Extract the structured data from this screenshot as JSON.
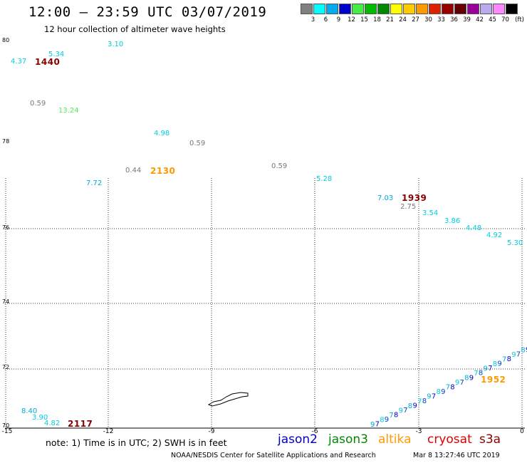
{
  "header": {
    "title": "12:00 – 23:59 UTC 03/07/2019",
    "subtitle": "12 hour collection of altimeter wave heights"
  },
  "colorbar": {
    "swatches": [
      "#808080",
      "#00ffff",
      "#00aaee",
      "#0000cc",
      "#44ee44",
      "#00bb00",
      "#008800",
      "#ffff00",
      "#ffcc00",
      "#ff9900",
      "#dd2200",
      "#990000",
      "#660000",
      "#990099",
      "#bbaaee",
      "#ff88ff",
      "#000000"
    ],
    "labels": [
      "3",
      "6",
      "9",
      "12",
      "15",
      "18",
      "21",
      "24",
      "27",
      "30",
      "33",
      "36",
      "39",
      "42",
      "45",
      "70",
      "(ft)"
    ]
  },
  "axes": {
    "y_labels": [
      "80",
      "78",
      "76",
      "74",
      "72",
      "70"
    ],
    "x_labels": [
      "-15",
      "-12",
      "-9",
      "-6",
      "-3",
      "0"
    ]
  },
  "observations": {
    "small": [
      {
        "t": "4.37",
        "c": "#00ccdd"
      },
      {
        "t": "5.34",
        "c": "#00ccdd"
      },
      {
        "t": "3.10",
        "c": "#00ccdd"
      },
      {
        "t": "0.59",
        "c": "#777777"
      },
      {
        "t": "13.24",
        "c": "#55ee55"
      },
      {
        "t": "4.98",
        "c": "#00ccdd"
      },
      {
        "t": "0.59",
        "c": "#777777"
      },
      {
        "t": "0.44",
        "c": "#777777"
      },
      {
        "t": "0.59",
        "c": "#777777"
      },
      {
        "t": "5.28",
        "c": "#00ccdd"
      },
      {
        "t": "7.72",
        "c": "#00aadd"
      },
      {
        "t": "7.03",
        "c": "#00aadd"
      },
      {
        "t": "2.75",
        "c": "#777777"
      },
      {
        "t": "3.54",
        "c": "#00ccdd"
      },
      {
        "t": "3.86",
        "c": "#00ccdd"
      },
      {
        "t": "4.48",
        "c": "#00ccdd"
      },
      {
        "t": "4.92",
        "c": "#00ccdd"
      },
      {
        "t": "5.30",
        "c": "#00ccdd"
      },
      {
        "t": "8.40",
        "c": "#00aadd"
      },
      {
        "t": "3.90",
        "c": "#00ccdd"
      },
      {
        "t": "4.82",
        "c": "#00ccdd"
      }
    ],
    "times": [
      {
        "t": "1440",
        "c": "#880000"
      },
      {
        "t": "2130",
        "c": "#ff9900"
      },
      {
        "t": "1939",
        "c": "#880000"
      },
      {
        "t": "2117",
        "c": "#880000"
      },
      {
        "t": "1952",
        "c": "#ff9900"
      }
    ]
  },
  "footer": {
    "note": "note: 1) Time is in UTC; 2) SWH is in feet",
    "missions": [
      {
        "name": "jason2",
        "color": "#0000cc"
      },
      {
        "name": "jason3",
        "color": "#008800"
      },
      {
        "name": "altika",
        "color": "#ff9900"
      },
      {
        "name": "cryosat",
        "color": "#dd0000"
      },
      {
        "name": "s3a",
        "color": "#880000"
      }
    ],
    "credit": "NOAA/NESDIS Center for Satellite Applications and Research",
    "generated": "Mar  8 13:27:46 UTC 2019"
  }
}
